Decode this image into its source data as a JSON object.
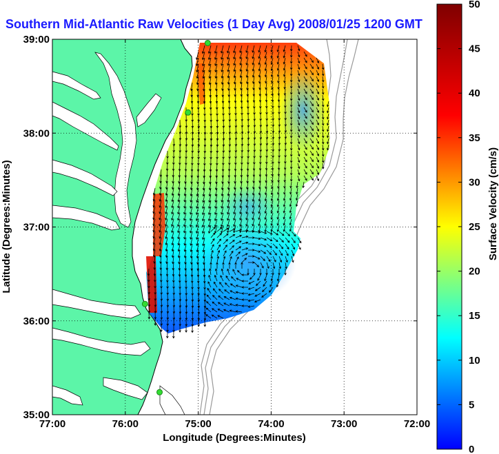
{
  "title": "Southern Mid-Atlantic Raw Velocities (1 Day Avg) 2008/01/25 1200 GMT",
  "x_axis": {
    "label": "Longitude (Degrees:Minutes)",
    "ticks": [
      {
        "value": -77,
        "label": "77:00"
      },
      {
        "value": -76,
        "label": "76:00"
      },
      {
        "value": -75,
        "label": "75:00"
      },
      {
        "value": -74,
        "label": "74:00"
      },
      {
        "value": -73,
        "label": "73:00"
      },
      {
        "value": -72,
        "label": "72:00"
      }
    ],
    "range": [
      -77,
      -72
    ]
  },
  "y_axis": {
    "label": "Latitude (Degrees:Minutes)",
    "ticks": [
      {
        "value": 35,
        "label": "35:00"
      },
      {
        "value": 36,
        "label": "36:00"
      },
      {
        "value": 37,
        "label": "37:00"
      },
      {
        "value": 38,
        "label": "38:00"
      },
      {
        "value": 39,
        "label": "39:00"
      }
    ],
    "range": [
      35,
      39
    ]
  },
  "colorbar": {
    "label": "Surface Velocity (cm/s)",
    "range": [
      0,
      50
    ],
    "ticks": [
      "0",
      "5",
      "10",
      "15",
      "20",
      "25",
      "30",
      "35",
      "40",
      "45",
      "50"
    ]
  },
  "colors": {
    "land": "#5cf5a8",
    "water": "#ffffff",
    "title": "#1a1aff",
    "bathymetry": "#999999",
    "station": "#33dd33",
    "arrows": "#000000"
  },
  "grid": "dotted",
  "stations": [
    {
      "name": "",
      "lon": -74.87,
      "lat": 38.96
    },
    {
      "name": "",
      "lon": -75.14,
      "lat": 38.22
    },
    {
      "name": "",
      "lon": -75.73,
      "lat": 36.18
    },
    {
      "name": "",
      "lon": -75.53,
      "lat": 35.24
    }
  ]
}
